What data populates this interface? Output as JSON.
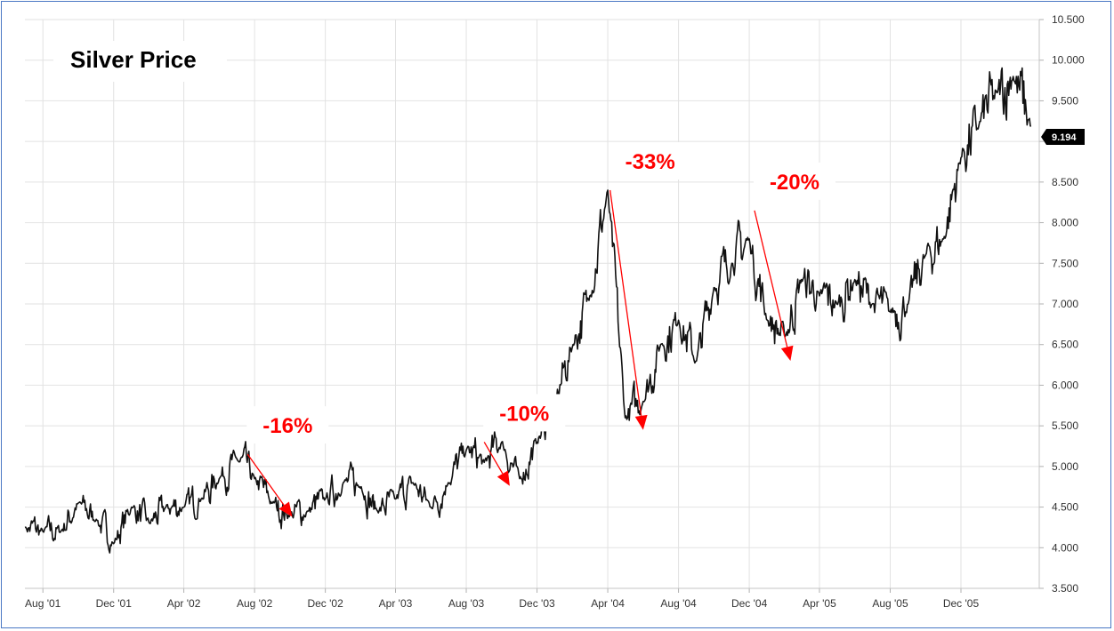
{
  "chart_data": {
    "type": "line",
    "title": "Silver Price",
    "xlabel": "",
    "ylabel": "",
    "x_ticks": [
      "Aug '01",
      "Dec '01",
      "Apr '02",
      "Aug '02",
      "Dec '02",
      "Apr '03",
      "Aug '03",
      "Dec '03",
      "Apr '04",
      "Aug '04",
      "Dec '04",
      "Apr '05",
      "Aug '05",
      "Dec '05"
    ],
    "y_ticks": [
      "3.500",
      "4.000",
      "4.500",
      "5.000",
      "5.500",
      "6.000",
      "6.500",
      "7.000",
      "7.500",
      "8.000",
      "8.500",
      "9.000",
      "9.500",
      "10.000",
      "10.500"
    ],
    "ylim": [
      3.5,
      10.5
    ],
    "y_axis_side": "right",
    "grid": true,
    "last_price": "9.194",
    "line_color": "#111111",
    "series": [
      {
        "x": [
          "2001-07",
          "2001-08",
          "2001-09",
          "2001-10",
          "2001-11",
          "2001-12",
          "2002-01",
          "2002-02",
          "2002-03",
          "2002-04",
          "2002-05",
          "2002-06",
          "2002-07",
          "2002-08",
          "2002-09",
          "2002-10",
          "2002-11",
          "2002-12",
          "2003-01",
          "2003-02",
          "2003-03",
          "2003-04",
          "2003-05",
          "2003-06",
          "2003-07",
          "2003-08",
          "2003-09",
          "2003-10",
          "2003-11",
          "2003-12",
          "2004-01",
          "2004-02",
          "2004-03",
          "2004-04",
          "2004-05",
          "2004-06",
          "2004-07",
          "2004-08",
          "2004-09",
          "2004-10",
          "2004-11",
          "2004-12",
          "2005-01",
          "2005-02",
          "2005-03",
          "2005-04",
          "2005-05",
          "2005-06",
          "2005-07",
          "2005-08",
          "2005-09",
          "2005-10",
          "2005-11",
          "2005-12",
          "2006-01",
          "2006-02",
          "2006-03",
          "2006-04"
        ],
        "values": [
          4.25,
          4.2,
          4.2,
          4.55,
          4.35,
          4.05,
          4.5,
          4.3,
          4.5,
          4.5,
          4.6,
          4.85,
          5.1,
          4.85,
          4.55,
          4.4,
          4.45,
          4.6,
          4.8,
          4.75,
          4.45,
          4.6,
          4.8,
          4.5,
          4.8,
          5.2,
          5.05,
          5.3,
          4.85,
          5.3,
          5.8,
          6.5,
          7.1,
          8.4,
          5.6,
          5.8,
          6.5,
          6.8,
          6.3,
          7.2,
          7.5,
          7.8,
          6.8,
          6.6,
          7.3,
          7.1,
          7.0,
          7.3,
          7.0,
          6.9,
          7.0,
          7.6,
          7.8,
          8.8,
          9.2,
          9.6,
          9.8,
          9.19
        ]
      }
    ],
    "annotations": [
      {
        "label": "-16%",
        "color": "#ff0000",
        "from": [
          "2002-07-20",
          5.15
        ],
        "to": [
          "2002-10-05",
          4.38
        ]
      },
      {
        "label": "-10%",
        "color": "#ff0000",
        "from": [
          "2003-09-01",
          5.3
        ],
        "to": [
          "2003-10-15",
          4.76
        ]
      },
      {
        "label": "-33%",
        "color": "#ff0000",
        "from": [
          "2004-04-05",
          8.4
        ],
        "to": [
          "2004-06-01",
          5.45
        ]
      },
      {
        "label": "-20%",
        "color": "#ff0000",
        "from": [
          "2004-12-10",
          8.15
        ],
        "to": [
          "2005-02-10",
          6.3
        ]
      }
    ]
  }
}
